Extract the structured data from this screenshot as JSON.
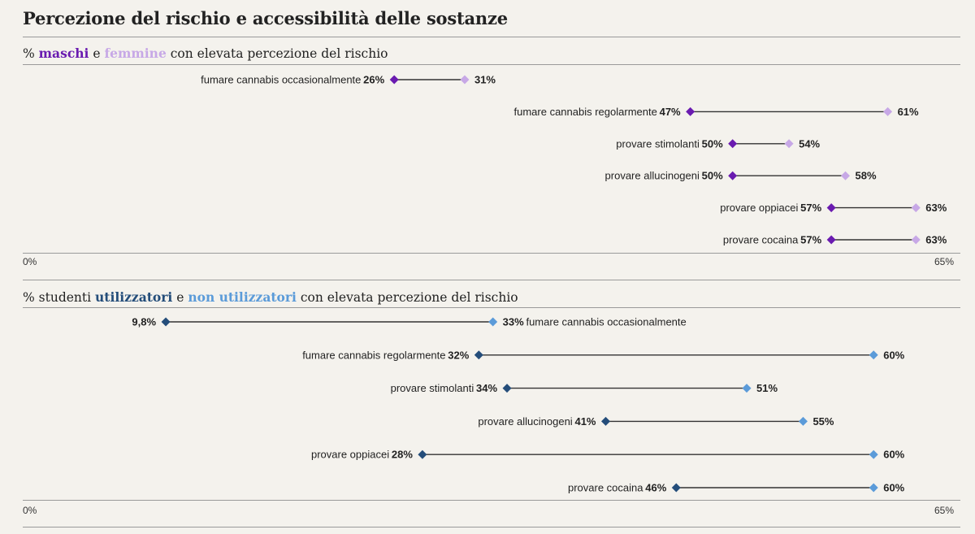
{
  "title": "Percezione del rischio e accessibilità delle sostanze",
  "colors": {
    "maschi": "#6a1bb0",
    "femmine": "#c7a8e6",
    "utilizzatori": "#244d7a",
    "non_utilizzatori": "#5b9bd9",
    "line": "#333333"
  },
  "panels": [
    {
      "subtitle": {
        "prefix": "% ",
        "key1": "maschi",
        "mid": " e ",
        "key2": "femmine",
        "suffix": " con elevata percezione del rischio"
      },
      "axis": {
        "min_label": "0%",
        "max_label": "65%"
      }
    },
    {
      "subtitle": {
        "prefix": "% studenti ",
        "key1": "utilizzatori",
        "mid": " e ",
        "key2": "non utilizzatori",
        "suffix": " con elevata percezione del rischio"
      },
      "axis": {
        "min_label": "0%",
        "max_label": "65%"
      }
    }
  ],
  "chart_data": [
    {
      "type": "dumbbell",
      "xlim": [
        0,
        65
      ],
      "series": [
        {
          "name": "maschi"
        },
        {
          "name": "femmine"
        }
      ],
      "rows": [
        {
          "category": "fumare cannabis occasionalmente",
          "a": 26,
          "a_label": "26%",
          "b": 31,
          "b_label": "31%"
        },
        {
          "category": "fumare cannabis regolarmente",
          "a": 47,
          "a_label": "47%",
          "b": 61,
          "b_label": "61%"
        },
        {
          "category": "provare stimolanti",
          "a": 50,
          "a_label": "50%",
          "b": 54,
          "b_label": "54%"
        },
        {
          "category": "provare allucinogeni",
          "a": 50,
          "a_label": "50%",
          "b": 58,
          "b_label": "58%"
        },
        {
          "category": "provare oppiacei",
          "a": 57,
          "a_label": "57%",
          "b": 63,
          "b_label": "63%"
        },
        {
          "category": "provare cocaina",
          "a": 57,
          "a_label": "57%",
          "b": 63,
          "b_label": "63%"
        }
      ]
    },
    {
      "type": "dumbbell",
      "xlim": [
        0,
        65
      ],
      "series": [
        {
          "name": "utilizzatori"
        },
        {
          "name": "non utilizzatori"
        }
      ],
      "rows": [
        {
          "category": "fumare cannabis occasionalmente",
          "a": 9.8,
          "a_label": "9,8%",
          "b": 33,
          "b_label": "33%"
        },
        {
          "category": "fumare cannabis regolarmente",
          "a": 32,
          "a_label": "32%",
          "b": 60,
          "b_label": "60%"
        },
        {
          "category": "provare stimolanti",
          "a": 34,
          "a_label": "34%",
          "b": 51,
          "b_label": "51%"
        },
        {
          "category": "provare allucinogeni",
          "a": 41,
          "a_label": "41%",
          "b": 55,
          "b_label": "55%"
        },
        {
          "category": "provare oppiacei",
          "a": 28,
          "a_label": "28%",
          "b": 60,
          "b_label": "60%"
        },
        {
          "category": "provare cocaina",
          "a": 46,
          "a_label": "46%",
          "b": 60,
          "b_label": "60%"
        }
      ]
    }
  ]
}
